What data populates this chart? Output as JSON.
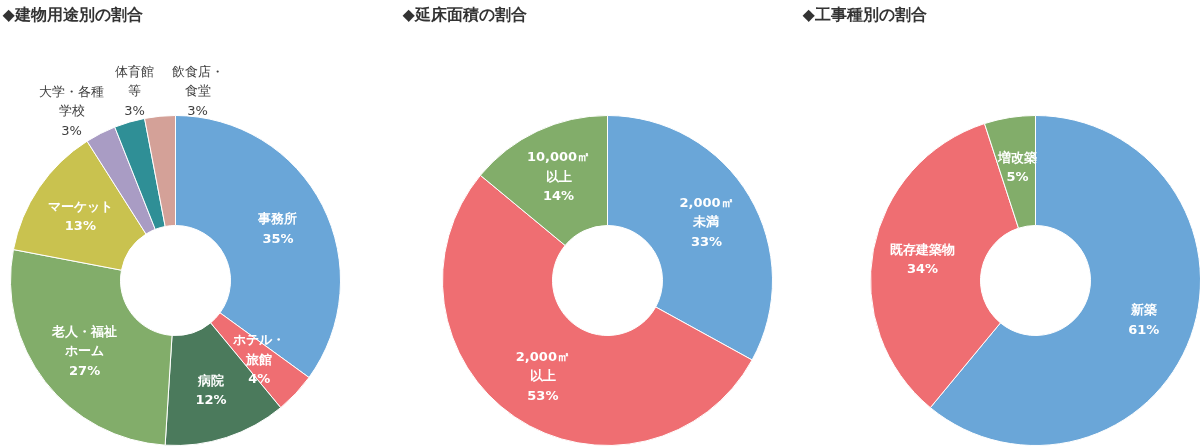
{
  "chart_data": [
    {
      "type": "donut",
      "title": "◆建物用途別の割合",
      "legend": false,
      "categories": [
        "事務所",
        "ホテル・旅館",
        "病院",
        "老人・福祉ホーム",
        "マーケット",
        "大学・各種学校",
        "体育館等",
        "飲食店・食堂"
      ],
      "values": [
        35,
        4,
        12,
        27,
        13,
        3,
        3,
        3
      ],
      "value_labels": [
        "35%",
        "4%",
        "12%",
        "27%",
        "13%",
        "3%",
        "3%",
        "3%"
      ],
      "colors": [
        "#6aa6d8",
        "#ef6e72",
        "#4b7a5c",
        "#82ad6a",
        "#c9c24f",
        "#a99cc4",
        "#2f8f96",
        "#d4a198"
      ]
    },
    {
      "type": "donut",
      "title": "◆延床面積の割合",
      "legend": false,
      "categories": [
        "2,000㎡未満",
        "2,000㎡以上",
        "10,000㎡以上"
      ],
      "values": [
        33,
        53,
        14
      ],
      "value_labels": [
        "33%",
        "53%",
        "14%"
      ],
      "colors": [
        "#6aa6d8",
        "#ef6e72",
        "#82ad6a"
      ]
    },
    {
      "type": "donut",
      "title": "◆工事種別の割合",
      "legend": false,
      "categories": [
        "新築",
        "既存建築物",
        "増改築"
      ],
      "values": [
        61,
        34,
        5
      ],
      "value_labels": [
        "61%",
        "34%",
        "5%"
      ],
      "colors": [
        "#6aa6d8",
        "#ef6e72",
        "#82ad6a"
      ]
    }
  ]
}
